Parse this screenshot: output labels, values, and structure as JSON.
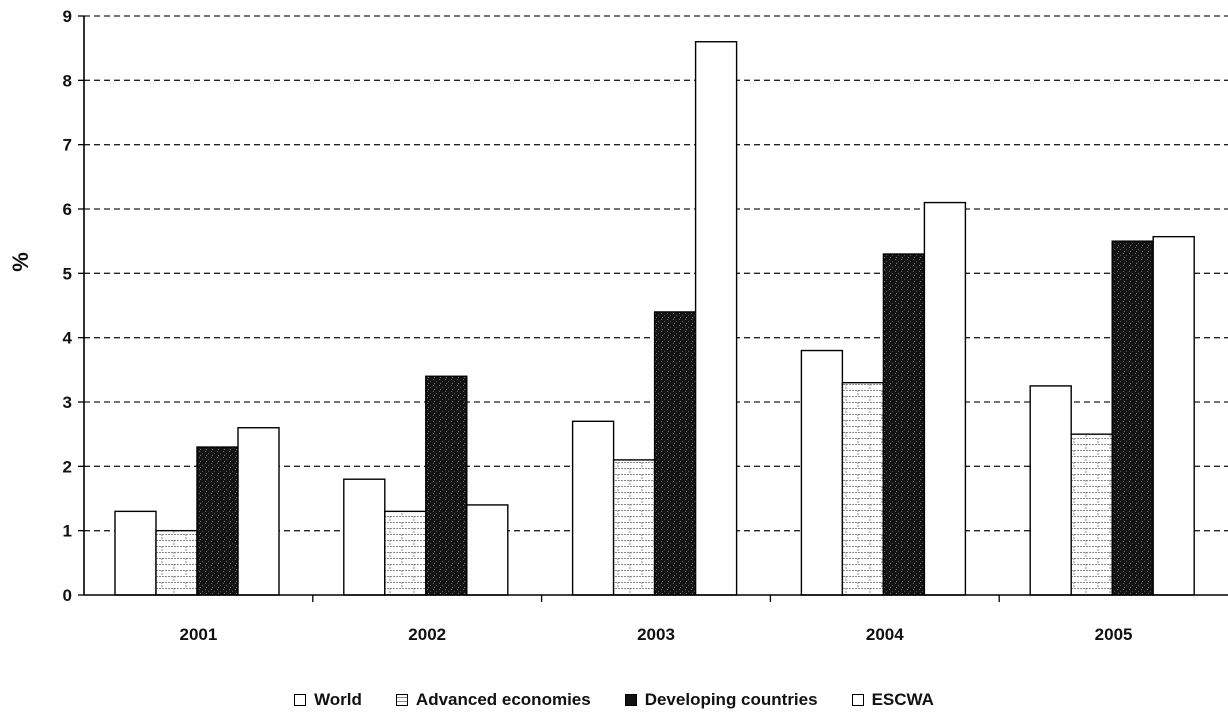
{
  "chart_data": {
    "type": "bar",
    "categories": [
      "2001",
      "2002",
      "2003",
      "2004",
      "2005"
    ],
    "series": [
      {
        "name": "World",
        "values": [
          1.3,
          1.8,
          2.7,
          3.8,
          3.25
        ],
        "color": "#ffffff",
        "pattern": "white"
      },
      {
        "name": "Advanced economies",
        "values": [
          1.0,
          1.3,
          2.1,
          3.3,
          2.5
        ],
        "color": "#ffffff",
        "pattern": "brick"
      },
      {
        "name": "Developing countries",
        "values": [
          2.3,
          3.4,
          4.4,
          5.3,
          5.5
        ],
        "color": "#111111",
        "pattern": "dark-speckle"
      },
      {
        "name": "ESCWA",
        "values": [
          2.6,
          1.4,
          8.6,
          6.1,
          5.57
        ],
        "color": "#ffffff",
        "pattern": "white"
      }
    ],
    "ylabel": "%",
    "xlabel": "",
    "ylim": [
      0,
      9
    ],
    "yticks": [
      "0",
      "1",
      "2",
      "3",
      "4",
      "5",
      "6",
      "7",
      "8",
      "9"
    ],
    "grid": "dashed horizontal",
    "legend": "bottom"
  },
  "legend_items": [
    {
      "label": "World",
      "icon": "empty-box"
    },
    {
      "label": "Advanced economies",
      "icon": "brick-box"
    },
    {
      "label": "Developing countries",
      "icon": "filled-box"
    },
    {
      "label": "ESCWA",
      "icon": "empty-box"
    }
  ]
}
